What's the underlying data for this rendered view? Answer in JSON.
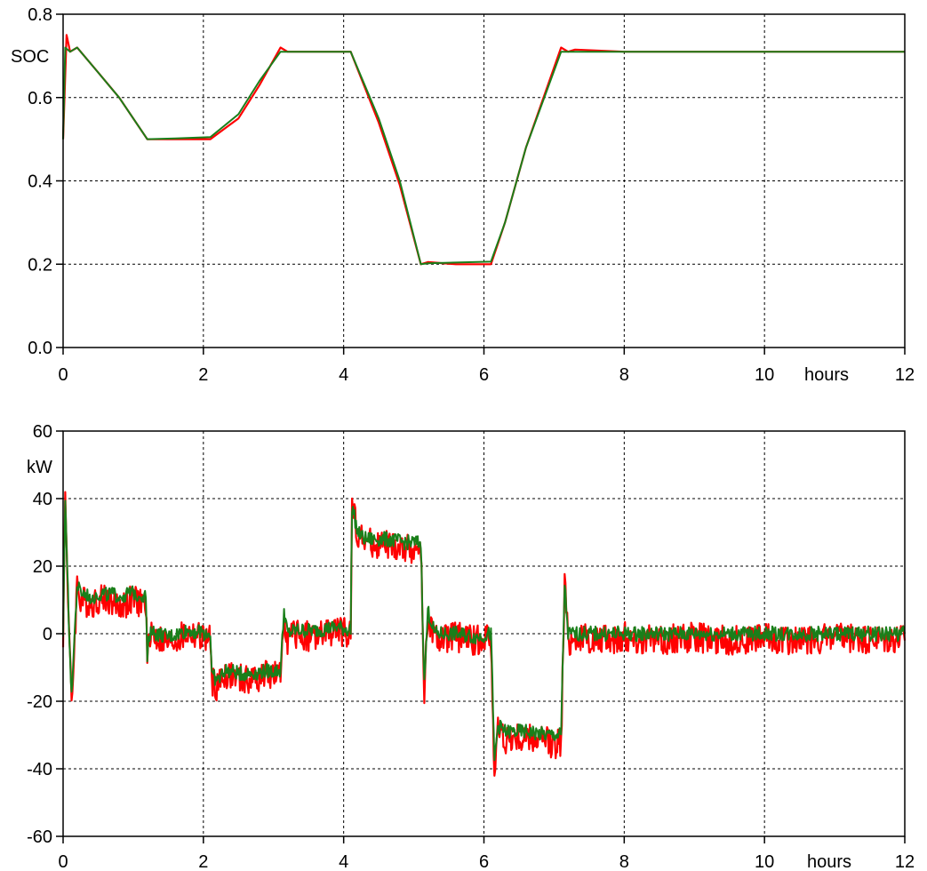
{
  "chart_data": [
    {
      "type": "line",
      "title": "",
      "xlabel": "hours",
      "ylabel": "SOC",
      "xlim": [
        0,
        12
      ],
      "ylim": [
        0.0,
        0.8
      ],
      "xticks": [
        0,
        2,
        4,
        6,
        8,
        10,
        12
      ],
      "yticks": [
        0.0,
        0.2,
        0.4,
        0.6,
        0.8
      ],
      "ytick_labels": [
        "0.0",
        "0.2",
        "0.4",
        "0.6",
        "0.8"
      ],
      "grid": true,
      "series": [
        {
          "color": "#ff0000",
          "x": [
            0,
            0.05,
            0.1,
            0.2,
            0.5,
            0.8,
            1.2,
            1.6,
            2.1,
            2.5,
            2.8,
            3.1,
            3.2,
            3.6,
            4.1,
            4.5,
            4.8,
            5.1,
            5.2,
            5.6,
            6.1,
            6.3,
            6.6,
            7.1,
            7.2,
            7.3,
            8,
            9,
            10,
            11,
            12
          ],
          "y": [
            0.5,
            0.75,
            0.71,
            0.72,
            0.66,
            0.6,
            0.5,
            0.5,
            0.5,
            0.55,
            0.63,
            0.72,
            0.71,
            0.71,
            0.71,
            0.54,
            0.39,
            0.2,
            0.205,
            0.2,
            0.2,
            0.3,
            0.48,
            0.72,
            0.71,
            0.715,
            0.71,
            0.71,
            0.71,
            0.71,
            0.71
          ]
        },
        {
          "color": "#1a7f1a",
          "x": [
            0,
            0.03,
            0.1,
            0.2,
            0.5,
            0.8,
            1.2,
            1.6,
            2.1,
            2.5,
            2.8,
            3.1,
            3.2,
            3.6,
            4.1,
            4.5,
            4.8,
            5.1,
            5.2,
            5.6,
            6.1,
            6.3,
            6.6,
            7.1,
            7.2,
            7.3,
            8,
            9,
            10,
            11,
            12
          ],
          "y": [
            0.5,
            0.72,
            0.71,
            0.72,
            0.66,
            0.6,
            0.5,
            0.502,
            0.505,
            0.56,
            0.64,
            0.71,
            0.71,
            0.71,
            0.71,
            0.55,
            0.4,
            0.2,
            0.202,
            0.204,
            0.206,
            0.3,
            0.48,
            0.71,
            0.71,
            0.71,
            0.71,
            0.71,
            0.71,
            0.71,
            0.71
          ]
        }
      ]
    },
    {
      "type": "line",
      "title": "",
      "xlabel": "hours",
      "ylabel": "kW",
      "xlim": [
        0,
        12
      ],
      "ylim": [
        -60,
        60
      ],
      "xticks": [
        0,
        2,
        4,
        6,
        8,
        10,
        12
      ],
      "yticks": [
        -60,
        -40,
        -20,
        0,
        20,
        40,
        60
      ],
      "ytick_labels": [
        "-60",
        "-40",
        "-20",
        "0",
        "20",
        "40",
        "60"
      ],
      "grid": true,
      "series": [
        {
          "color": "#ff0000",
          "x": [
            0,
            0.03,
            0.08,
            0.12,
            0.2,
            0.25,
            0.4,
            0.6,
            0.8,
            1.0,
            1.18,
            1.2,
            1.25,
            1.3,
            1.5,
            1.8,
            2.1,
            2.12,
            2.2,
            2.3,
            2.6,
            2.9,
            3.1,
            3.15,
            3.2,
            3.3,
            3.6,
            3.9,
            4.1,
            4.12,
            4.2,
            4.3,
            4.6,
            4.9,
            5.1,
            5.15,
            5.2,
            5.3,
            5.6,
            5.9,
            6.1,
            6.15,
            6.2,
            6.3,
            6.6,
            6.9,
            7.1,
            7.15,
            7.2,
            7.3,
            7.6,
            8.0,
            8.5,
            9.0,
            9.5,
            10.0,
            10.5,
            11.0,
            11.5,
            12.0
          ],
          "y": [
            0,
            41,
            5,
            -22,
            15,
            10,
            9,
            11,
            8,
            10,
            9,
            -8,
            2,
            -1,
            -3,
            0,
            -2,
            -14,
            -16,
            -12,
            -14,
            -12,
            -13,
            6,
            -2,
            0,
            -1,
            1,
            0,
            39,
            30,
            27,
            26,
            25,
            25,
            -18,
            6,
            -2,
            -1,
            -2,
            -1,
            -42,
            -28,
            -31,
            -31,
            -32,
            -33,
            16,
            -2,
            -1,
            -2,
            -1,
            -2,
            -1,
            -2,
            -1,
            -2,
            -1,
            -2,
            -2
          ]
        },
        {
          "color": "#1a7f1a",
          "x": [
            0,
            0.03,
            0.08,
            0.12,
            0.2,
            0.25,
            0.4,
            0.6,
            0.8,
            1.0,
            1.18,
            1.2,
            1.25,
            1.3,
            1.5,
            1.8,
            2.1,
            2.12,
            2.2,
            2.3,
            2.6,
            2.9,
            3.1,
            3.15,
            3.2,
            3.3,
            3.6,
            3.9,
            4.1,
            4.12,
            4.2,
            4.3,
            4.6,
            4.9,
            5.1,
            5.15,
            5.2,
            5.3,
            5.6,
            5.9,
            6.1,
            6.15,
            6.2,
            6.3,
            6.6,
            6.9,
            7.1,
            7.15,
            7.2,
            7.3,
            7.6,
            8.0,
            8.5,
            9.0,
            9.5,
            10.0,
            10.5,
            11.0,
            11.5,
            12.0
          ],
          "y": [
            0,
            40,
            5,
            -18,
            14,
            12,
            11,
            12,
            11,
            12,
            11,
            -6,
            2,
            0,
            -1,
            1,
            0,
            -12,
            -14,
            -11,
            -12,
            -11,
            -11,
            7,
            0,
            1,
            1,
            2,
            1,
            38,
            30,
            28,
            28,
            27,
            27,
            -15,
            7,
            0,
            0,
            -1,
            0,
            -38,
            -27,
            -29,
            -29,
            -30,
            -30,
            15,
            0,
            0,
            0,
            0,
            0,
            0,
            0,
            0,
            0,
            0,
            0,
            0
          ]
        }
      ]
    }
  ]
}
